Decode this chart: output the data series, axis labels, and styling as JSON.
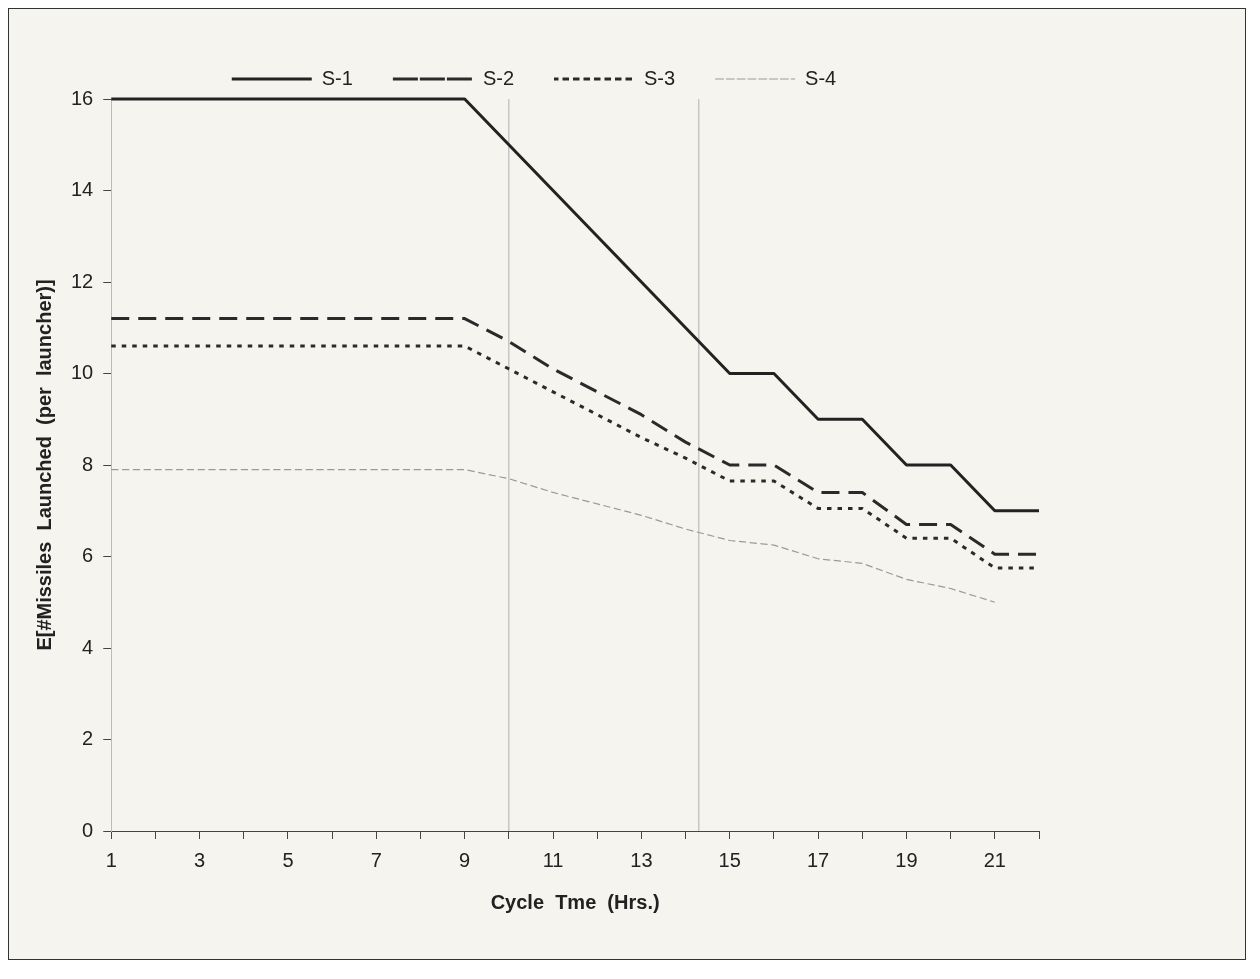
{
  "chart_data": {
    "type": "line",
    "xlabel": "Cycle  Tme  (Hrs.)",
    "ylabel": "E[#Missiles  Launched  (per  launcher)]",
    "x": [
      1,
      2,
      3,
      4,
      5,
      6,
      7,
      8,
      9,
      10,
      11,
      12,
      13,
      14,
      15,
      16,
      17,
      18,
      19,
      20,
      21,
      22
    ],
    "xlim": [
      1,
      22
    ],
    "xticks": [
      1,
      {
        "value": 2,
        "label": null
      },
      3,
      {
        "value": 4,
        "label": null
      },
      5,
      {
        "value": 6,
        "label": null
      },
      7,
      {
        "value": 8,
        "label": null
      },
      9,
      {
        "value": 10,
        "label": null
      },
      11,
      {
        "value": 12,
        "label": null
      },
      13,
      {
        "value": 14,
        "label": null
      },
      15,
      {
        "value": 16,
        "label": null
      },
      17,
      {
        "value": 18,
        "label": null
      },
      19,
      {
        "value": 20,
        "label": null
      },
      21,
      {
        "value": 22,
        "label": null
      }
    ],
    "ylim": [
      0,
      16
    ],
    "yticks": [
      0,
      2,
      4,
      6,
      8,
      10,
      12,
      14,
      16
    ],
    "series": [
      {
        "name": "S-1",
        "color": "#222222",
        "line_style": "solid",
        "values": [
          16,
          16,
          16,
          16,
          16,
          16,
          16,
          16,
          16,
          15,
          14,
          13,
          12,
          11,
          10,
          10,
          9,
          9,
          8,
          8,
          7,
          7
        ]
      },
      {
        "name": "S-2",
        "color": "#2a2a2a",
        "line_style": "dashed",
        "values": [
          11.2,
          11.2,
          11.2,
          11.2,
          11.2,
          11.2,
          11.2,
          11.2,
          11.2,
          10.7,
          10.1,
          9.6,
          9.1,
          8.5,
          8.0,
          8.0,
          7.4,
          7.4,
          6.7,
          6.7,
          6.05,
          6.05
        ]
      },
      {
        "name": "S-3",
        "color": "#2a2a2a",
        "line_style": "dotted",
        "values": [
          10.6,
          10.6,
          10.6,
          10.6,
          10.6,
          10.6,
          10.6,
          10.6,
          10.6,
          10.1,
          9.6,
          9.1,
          8.6,
          8.15,
          7.65,
          7.65,
          7.05,
          7.05,
          6.4,
          6.4,
          5.75,
          5.75
        ]
      },
      {
        "name": "S-4",
        "color": "#9a9a9a",
        "line_style": "dashed",
        "values": [
          7.9,
          7.9,
          7.9,
          7.9,
          7.9,
          7.9,
          7.9,
          7.9,
          7.9,
          7.7,
          7.4,
          7.15,
          6.9,
          6.6,
          6.35,
          6.25,
          5.95,
          5.85,
          5.5,
          5.3,
          5.0,
          null
        ]
      }
    ],
    "ref_lines": [
      {
        "axis": "x",
        "value": 10,
        "color": "#b0b0b0"
      },
      {
        "axis": "x",
        "value": 14.3,
        "color": "#b0b0b0"
      }
    ],
    "legend": "top",
    "grid": false,
    "marker": "none"
  }
}
